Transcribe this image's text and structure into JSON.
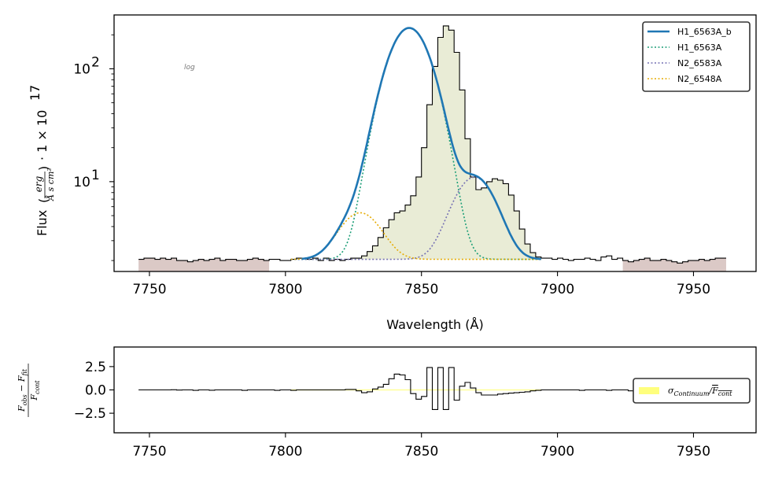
{
  "chart_data": [
    {
      "type": "line",
      "name": "spectrum-fit",
      "xlabel": "Wavelength (Å)",
      "ylabel_prefix": "Flux",
      "ylabel_unit_num": "erg",
      "ylabel_unit_den": "Å s cm²",
      "ylabel_scale": "· 1 × 10",
      "ylabel_scale_exp": "17",
      "xlim": [
        7737,
        7973
      ],
      "ylim": [
        1.6,
        300
      ],
      "yscale": "log",
      "annotation": "log",
      "xticks": [
        7750,
        7800,
        7850,
        7900,
        7950
      ],
      "xtick_labels": [
        "7750",
        "7800",
        "7850",
        "7900",
        "7950"
      ],
      "ytick_major": [
        10,
        100
      ],
      "ytick_labels": [
        "10",
        "10"
      ],
      "ytick_exponents": [
        "1",
        "2"
      ],
      "legend_position": "top-right",
      "legend": [
        "H1_6563A_b",
        "H1_6563A",
        "N2_6583A",
        "N2_6548A"
      ],
      "continuum": 2.05,
      "fill_color": "#e9ecd6",
      "continuum_band_color": "#dbc9c6",
      "series": [
        {
          "name": "H1_6563A_b",
          "style": "solid",
          "color": "#1f77b4"
        },
        {
          "name": "H1_6563A",
          "style": "dotted",
          "color": "#1b9e77",
          "center": 7845.5,
          "amplitude": 228,
          "sigma": 6.8
        },
        {
          "name": "N2_6583A",
          "style": "dotted",
          "color": "#7570b3",
          "center": 7869.5,
          "amplitude": 8.9,
          "sigma": 6.8
        },
        {
          "name": "N2_6548A",
          "style": "dotted",
          "color": "#e6ab02",
          "center": 7827.5,
          "amplitude": 3.25,
          "sigma": 6.8
        }
      ],
      "observed_flux": {
        "x_start": 7746,
        "x_step": 2,
        "values": [
          2.05,
          2.1,
          2.1,
          2.05,
          2.1,
          2.05,
          2.1,
          2.0,
          2.0,
          1.95,
          2.0,
          2.05,
          2.0,
          2.05,
          2.1,
          2.0,
          2.05,
          2.05,
          2.0,
          2.0,
          2.05,
          2.1,
          2.05,
          2.0,
          2.05,
          2.05,
          2.0,
          2.0,
          2.05,
          2.1,
          2.1,
          2.05,
          2.1,
          2.0,
          2.1,
          2.0,
          2.05,
          2.0,
          2.05,
          2.1,
          2.1,
          2.2,
          2.4,
          2.7,
          3.2,
          3.9,
          4.6,
          5.3,
          5.5,
          6.2,
          7.5,
          11,
          20,
          48,
          105,
          190,
          240,
          220,
          140,
          65,
          24,
          11,
          8.5,
          8.8,
          10,
          10.6,
          10.3,
          9.6,
          7.6,
          5.5,
          3.8,
          2.8,
          2.35,
          2.15,
          2.1,
          2.1,
          2.05,
          2.1,
          2.05,
          2.0,
          2.05,
          2.05,
          2.1,
          2.05,
          2.0,
          2.15,
          2.2,
          2.05,
          2.1,
          2.0,
          1.95,
          2.0,
          2.05,
          2.1,
          2.0,
          2.0,
          2.05,
          2.0,
          1.95,
          1.9,
          1.95,
          2.0,
          2.0,
          2.05,
          2.0,
          2.05,
          2.1,
          2.1
        ]
      }
    },
    {
      "type": "line",
      "name": "residuals",
      "ylabel": "(F_obs − F_fit) / F_cont",
      "ylim": [
        -4.6,
        4.6
      ],
      "xlim": [
        7737,
        7973
      ],
      "xticks": [
        7750,
        7800,
        7850,
        7900,
        7950
      ],
      "xtick_labels": [
        "7750",
        "7800",
        "7850",
        "7900",
        "7950"
      ],
      "yticks": [
        2.5,
        0.0,
        -2.5
      ],
      "ytick_labels": [
        "2.5",
        "0.0",
        "−2.5"
      ],
      "legend_position": "right",
      "legend": [
        "σ_Continuum / F̄_cont"
      ],
      "band_color": "#ffff66",
      "residual": {
        "x_start": 7746,
        "x_step": 2,
        "values": [
          0,
          0,
          0,
          0,
          0,
          0,
          0.02,
          -0.02,
          0,
          0,
          -0.05,
          0,
          0,
          -0.03,
          0,
          0,
          0,
          0,
          0,
          -0.05,
          0,
          0,
          0,
          0,
          0,
          -0.05,
          0,
          0,
          -0.05,
          0,
          0,
          0,
          0,
          0,
          0,
          0,
          0,
          0,
          0.05,
          0.05,
          -0.1,
          -0.3,
          -0.2,
          0.1,
          0.3,
          0.6,
          1.2,
          1.7,
          1.6,
          1.1,
          -0.4,
          -1.0,
          -0.7,
          2.4,
          -2.1,
          2.4,
          -2.1,
          2.4,
          -1.1,
          0.4,
          0.8,
          0.2,
          -0.3,
          -0.55,
          -0.55,
          -0.55,
          -0.45,
          -0.4,
          -0.35,
          -0.3,
          -0.25,
          -0.2,
          -0.1,
          -0.05,
          0,
          0,
          0,
          0,
          0,
          0,
          0,
          -0.05,
          0,
          0,
          0,
          0,
          -0.05,
          0,
          0,
          0,
          -0.1,
          0,
          0,
          0,
          -0.05,
          0,
          0,
          0,
          -0.05,
          0,
          0,
          0,
          0,
          0,
          0,
          0,
          0,
          0
        ]
      }
    }
  ]
}
